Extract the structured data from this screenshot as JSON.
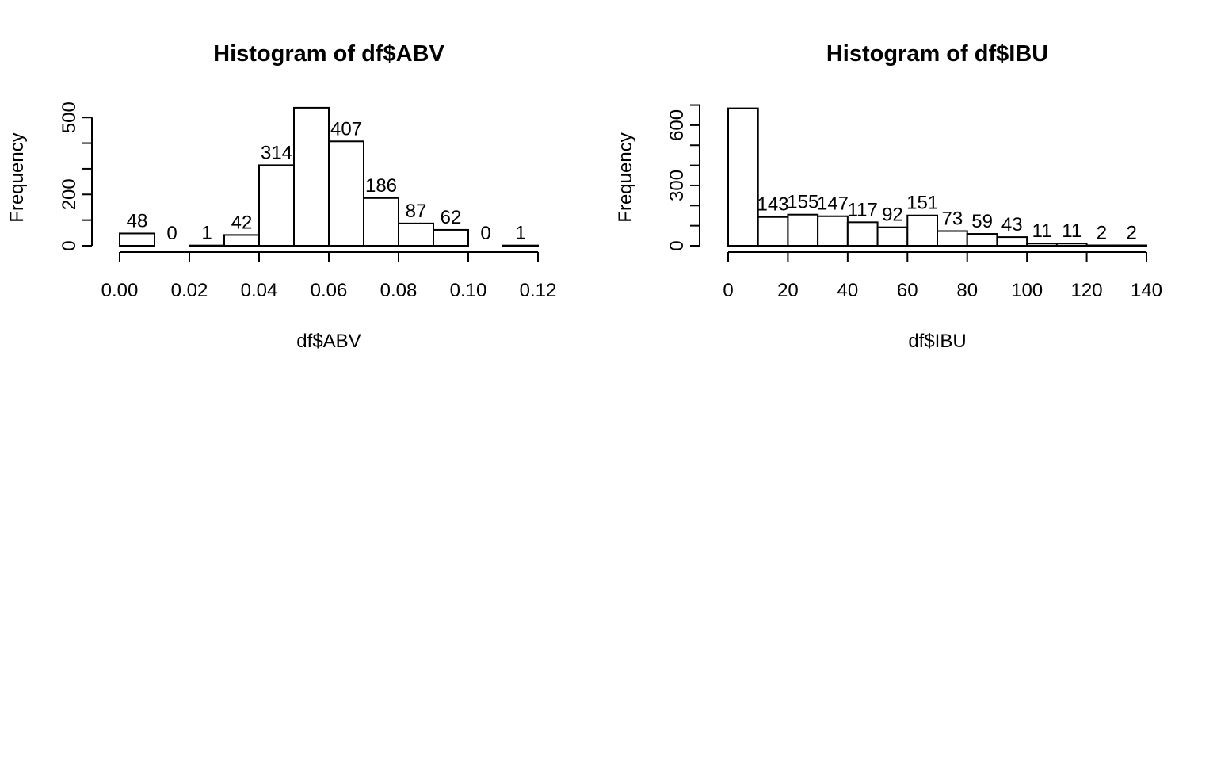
{
  "chart_data": [
    {
      "type": "bar",
      "title": "Histogram of df$ABV",
      "xlabel": "df$ABV",
      "ylabel": "Frequency",
      "xlim": [
        0,
        0.12
      ],
      "ylim": [
        0,
        540
      ],
      "x_ticks": [
        0,
        0.02,
        0.04,
        0.06,
        0.08,
        0.1,
        0.12
      ],
      "x_tick_labels": [
        "0.00",
        "0.02",
        "0.04",
        "0.06",
        "0.08",
        "0.10",
        "0.12"
      ],
      "y_ticks": [
        0,
        100,
        200,
        300,
        400,
        500
      ],
      "y_tick_labels": [
        "0",
        "",
        "200",
        "",
        "",
        "500"
      ],
      "bins": [
        {
          "start": 0.0,
          "end": 0.01,
          "count": 48,
          "label": "48"
        },
        {
          "start": 0.01,
          "end": 0.02,
          "count": 0,
          "label": "0"
        },
        {
          "start": 0.02,
          "end": 0.03,
          "count": 1,
          "label": "1"
        },
        {
          "start": 0.03,
          "end": 0.04,
          "count": 42,
          "label": "42"
        },
        {
          "start": 0.04,
          "end": 0.05,
          "count": 314,
          "label": "314"
        },
        {
          "start": 0.05,
          "end": 0.06,
          "count": 538,
          "label": ""
        },
        {
          "start": 0.06,
          "end": 0.07,
          "count": 407,
          "label": "407"
        },
        {
          "start": 0.07,
          "end": 0.08,
          "count": 186,
          "label": "186"
        },
        {
          "start": 0.08,
          "end": 0.09,
          "count": 87,
          "label": "87"
        },
        {
          "start": 0.09,
          "end": 0.1,
          "count": 62,
          "label": "62"
        },
        {
          "start": 0.1,
          "end": 0.11,
          "count": 0,
          "label": "0"
        },
        {
          "start": 0.11,
          "end": 0.12,
          "count": 1,
          "label": "1"
        }
      ]
    },
    {
      "type": "bar",
      "title": "Histogram of df$IBU",
      "xlabel": "df$IBU",
      "ylabel": "Frequency",
      "xlim": [
        0,
        140
      ],
      "ylim": [
        0,
        700
      ],
      "x_ticks": [
        0,
        20,
        40,
        60,
        80,
        100,
        120,
        140
      ],
      "x_tick_labels": [
        "0",
        "20",
        "40",
        "60",
        "80",
        "100",
        "120",
        "140"
      ],
      "y_ticks": [
        0,
        100,
        200,
        300,
        400,
        500,
        600,
        700
      ],
      "y_tick_labels": [
        "0",
        "",
        "",
        "300",
        "",
        "",
        "600",
        ""
      ],
      "bins": [
        {
          "start": 0,
          "end": 10,
          "count": 684,
          "label": ""
        },
        {
          "start": 10,
          "end": 20,
          "count": 143,
          "label": "143"
        },
        {
          "start": 20,
          "end": 30,
          "count": 155,
          "label": "155"
        },
        {
          "start": 30,
          "end": 40,
          "count": 147,
          "label": "147"
        },
        {
          "start": 40,
          "end": 50,
          "count": 117,
          "label": "117"
        },
        {
          "start": 50,
          "end": 60,
          "count": 92,
          "label": "92"
        },
        {
          "start": 60,
          "end": 70,
          "count": 151,
          "label": "151"
        },
        {
          "start": 70,
          "end": 80,
          "count": 73,
          "label": "73"
        },
        {
          "start": 80,
          "end": 90,
          "count": 59,
          "label": "59"
        },
        {
          "start": 90,
          "end": 100,
          "count": 43,
          "label": "43"
        },
        {
          "start": 100,
          "end": 110,
          "count": 11,
          "label": "11"
        },
        {
          "start": 110,
          "end": 120,
          "count": 11,
          "label": "11"
        },
        {
          "start": 120,
          "end": 130,
          "count": 2,
          "label": "2"
        },
        {
          "start": 130,
          "end": 140,
          "count": 2,
          "label": "2"
        }
      ]
    }
  ]
}
